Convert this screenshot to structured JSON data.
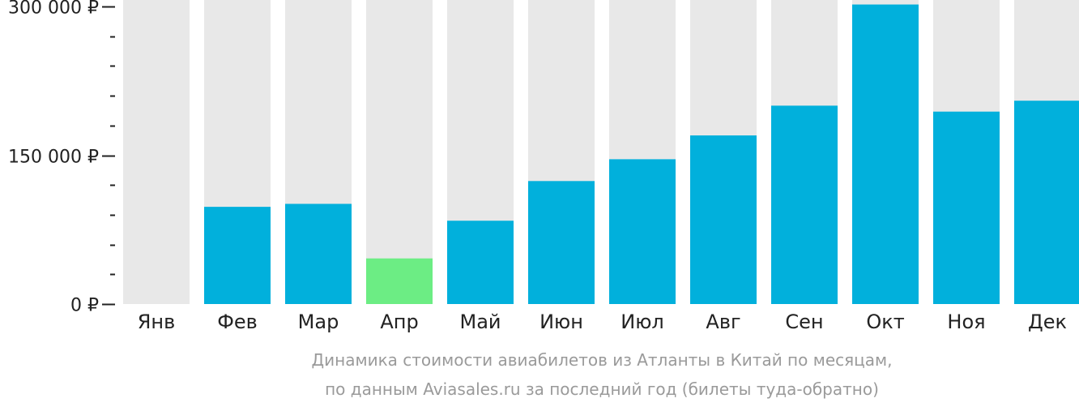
{
  "chart_data": {
    "type": "bar",
    "categories": [
      "Янв",
      "Фев",
      "Мар",
      "Апр",
      "Май",
      "Июн",
      "Июл",
      "Авг",
      "Сен",
      "Окт",
      "Ноя",
      "Дек"
    ],
    "values": [
      null,
      98000,
      101000,
      46000,
      84000,
      124000,
      146000,
      170000,
      200000,
      302000,
      194000,
      205000
    ],
    "highlight_index": 3,
    "ylim": [
      0,
      300000
    ],
    "yticks": [
      {
        "value": 0,
        "label": "0 ₽"
      },
      {
        "value": 150000,
        "label": "150 000 ₽"
      },
      {
        "value": 300000,
        "label": "300 000 ₽"
      }
    ],
    "minor_tick_step": 30000,
    "colors": {
      "bar": "#01b0dc",
      "highlight": "#6ced84",
      "background_column": "#e8e8e8",
      "axis": "#222222"
    },
    "caption": [
      "Динамика стоимости авиабилетов из Атланты в Китай по месяцам,",
      "по данным Aviasales.ru за последний год (билеты туда-обратно)"
    ],
    "xlabel": "",
    "ylabel": ""
  }
}
